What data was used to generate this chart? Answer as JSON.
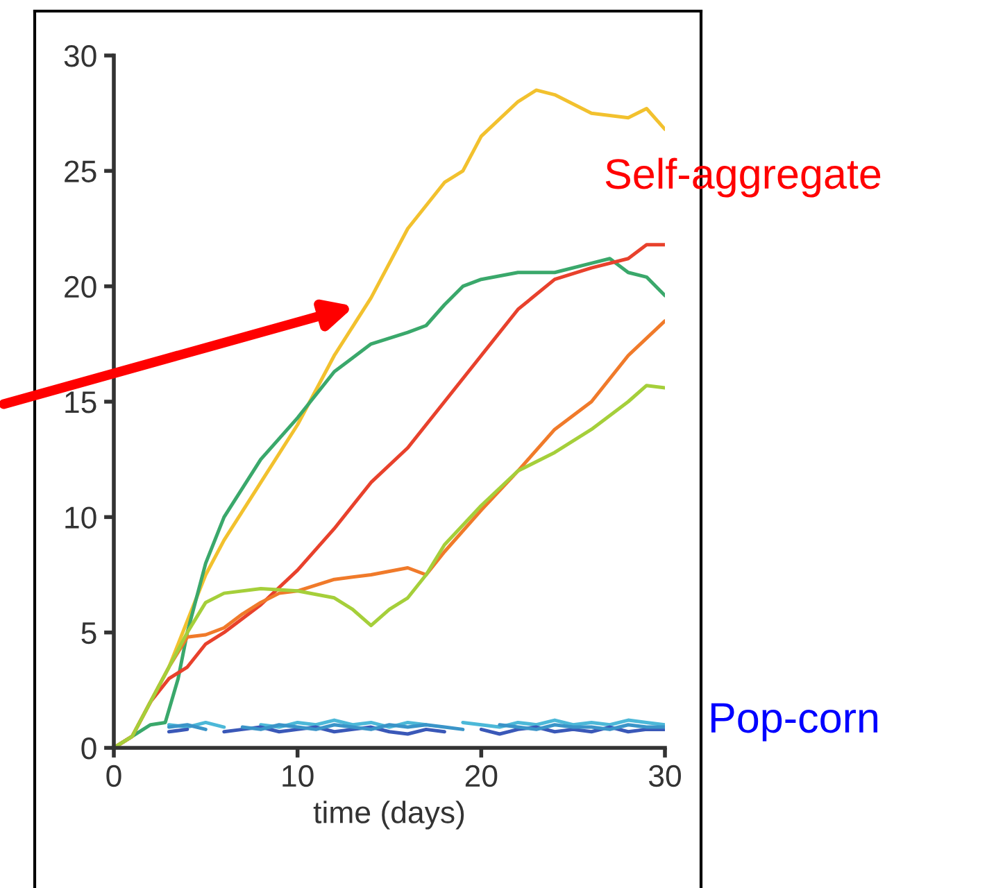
{
  "chart_data": {
    "type": "line",
    "xlabel": "time (days)",
    "xlim": [
      0,
      30
    ],
    "xticks": [
      0,
      10,
      20,
      30
    ],
    "ylim": [
      0,
      30
    ],
    "yticks": [
      0,
      5,
      10,
      15,
      20,
      25,
      30
    ],
    "grid": false,
    "legend": false,
    "annotations": [
      "Self-aggregate",
      "Pop-corn"
    ],
    "series": [
      {
        "color": "#f2c12e",
        "x": [
          0,
          1,
          2,
          3,
          4,
          5,
          6,
          8,
          10,
          12,
          14,
          16,
          18,
          19,
          20,
          22,
          23,
          24,
          26,
          28,
          29,
          30
        ],
        "values": [
          0,
          0.5,
          2,
          3.5,
          5.5,
          7.5,
          9,
          11.5,
          14,
          17,
          19.5,
          22.5,
          24.5,
          25,
          26.5,
          28,
          28.5,
          28.3,
          27.5,
          27.3,
          27.7,
          26.8
        ]
      },
      {
        "color": "#3aa86b",
        "x": [
          0,
          1,
          2,
          2.8,
          3.5,
          4,
          5,
          6,
          8,
          10,
          12,
          14,
          16,
          17,
          18,
          19,
          20,
          22,
          24,
          26,
          27,
          28,
          29,
          30
        ],
        "values": [
          0,
          0.5,
          1,
          1.1,
          3,
          5,
          8,
          10,
          12.5,
          14.3,
          16.3,
          17.5,
          18,
          18.3,
          19.2,
          20,
          20.3,
          20.6,
          20.6,
          21,
          21.2,
          20.6,
          20.4,
          19.6
        ]
      },
      {
        "color": "#e8412c",
        "x": [
          0,
          1,
          2,
          3,
          4,
          5,
          6,
          8,
          10,
          12,
          14,
          16,
          18,
          20,
          22,
          24,
          26,
          28,
          29,
          30
        ],
        "values": [
          0,
          0.5,
          2,
          3,
          3.5,
          4.5,
          5,
          6.2,
          7.7,
          9.5,
          11.5,
          13,
          15,
          17,
          19,
          20.3,
          20.8,
          21.2,
          21.8,
          21.8
        ]
      },
      {
        "color": "#f07a2a",
        "x": [
          0,
          1,
          2,
          3,
          4,
          5,
          6,
          7,
          8,
          9,
          10,
          12,
          14,
          16,
          17,
          18,
          20,
          22,
          24,
          26,
          28,
          30
        ],
        "values": [
          0,
          0.5,
          2,
          3.5,
          4.8,
          4.9,
          5.2,
          5.8,
          6.3,
          6.7,
          6.8,
          7.3,
          7.5,
          7.8,
          7.5,
          8.5,
          10.3,
          12,
          13.8,
          15,
          17,
          18.5
        ]
      },
      {
        "color": "#a5cf3a",
        "x": [
          0,
          1,
          2,
          3,
          4,
          5,
          6,
          8,
          10,
          12,
          13,
          14,
          15,
          16,
          17,
          18,
          20,
          22,
          24,
          26,
          28,
          29,
          30
        ],
        "values": [
          0,
          0.5,
          2,
          3.5,
          5,
          6.3,
          6.7,
          6.9,
          6.8,
          6.5,
          6,
          5.3,
          6,
          6.5,
          7.5,
          8.8,
          10.5,
          12,
          12.8,
          13.8,
          15,
          15.7,
          15.6
        ]
      },
      {
        "color": "#4cb8d8",
        "x": [
          3,
          4,
          5,
          6,
          7,
          8,
          9,
          10,
          11,
          12,
          13,
          14,
          15,
          16,
          17,
          18,
          19,
          20,
          21,
          22,
          23,
          24,
          25,
          26,
          27,
          28,
          29,
          30
        ],
        "values": [
          1,
          0.9,
          1.1,
          0.9,
          null,
          1,
          0.9,
          1.1,
          1,
          1.2,
          1,
          1.1,
          0.9,
          1.1,
          1,
          null,
          1.1,
          1,
          0.9,
          1.1,
          1,
          1.2,
          1,
          1.1,
          1,
          1.2,
          1.1,
          1
        ]
      },
      {
        "color": "#3a58b8",
        "x": [
          3,
          4,
          5,
          6,
          7,
          8,
          9,
          10,
          11,
          12,
          13,
          14,
          15,
          16,
          17,
          18,
          19,
          20,
          21,
          22,
          23,
          24,
          25,
          26,
          27,
          28,
          29,
          30
        ],
        "values": [
          0.7,
          0.8,
          null,
          0.7,
          0.8,
          0.9,
          0.7,
          0.8,
          0.9,
          0.7,
          0.8,
          0.9,
          0.7,
          0.6,
          0.8,
          0.7,
          null,
          0.8,
          0.6,
          0.8,
          0.9,
          0.7,
          0.8,
          0.7,
          0.9,
          0.7,
          0.8,
          0.8
        ]
      },
      {
        "color": "#3a94c8",
        "x": [
          3,
          4,
          5,
          6,
          7,
          8,
          9,
          10,
          11,
          12,
          13,
          14,
          15,
          16,
          17,
          18,
          19,
          20,
          21,
          22,
          23,
          24,
          25,
          26,
          27,
          28,
          29,
          30
        ],
        "values": [
          0.9,
          1,
          0.8,
          null,
          0.9,
          0.8,
          1,
          0.9,
          0.8,
          1,
          0.9,
          0.8,
          1,
          0.9,
          1,
          0.9,
          0.8,
          null,
          1,
          0.9,
          0.8,
          1,
          0.9,
          0.9,
          0.8,
          1,
          0.9,
          0.9
        ]
      }
    ]
  }
}
